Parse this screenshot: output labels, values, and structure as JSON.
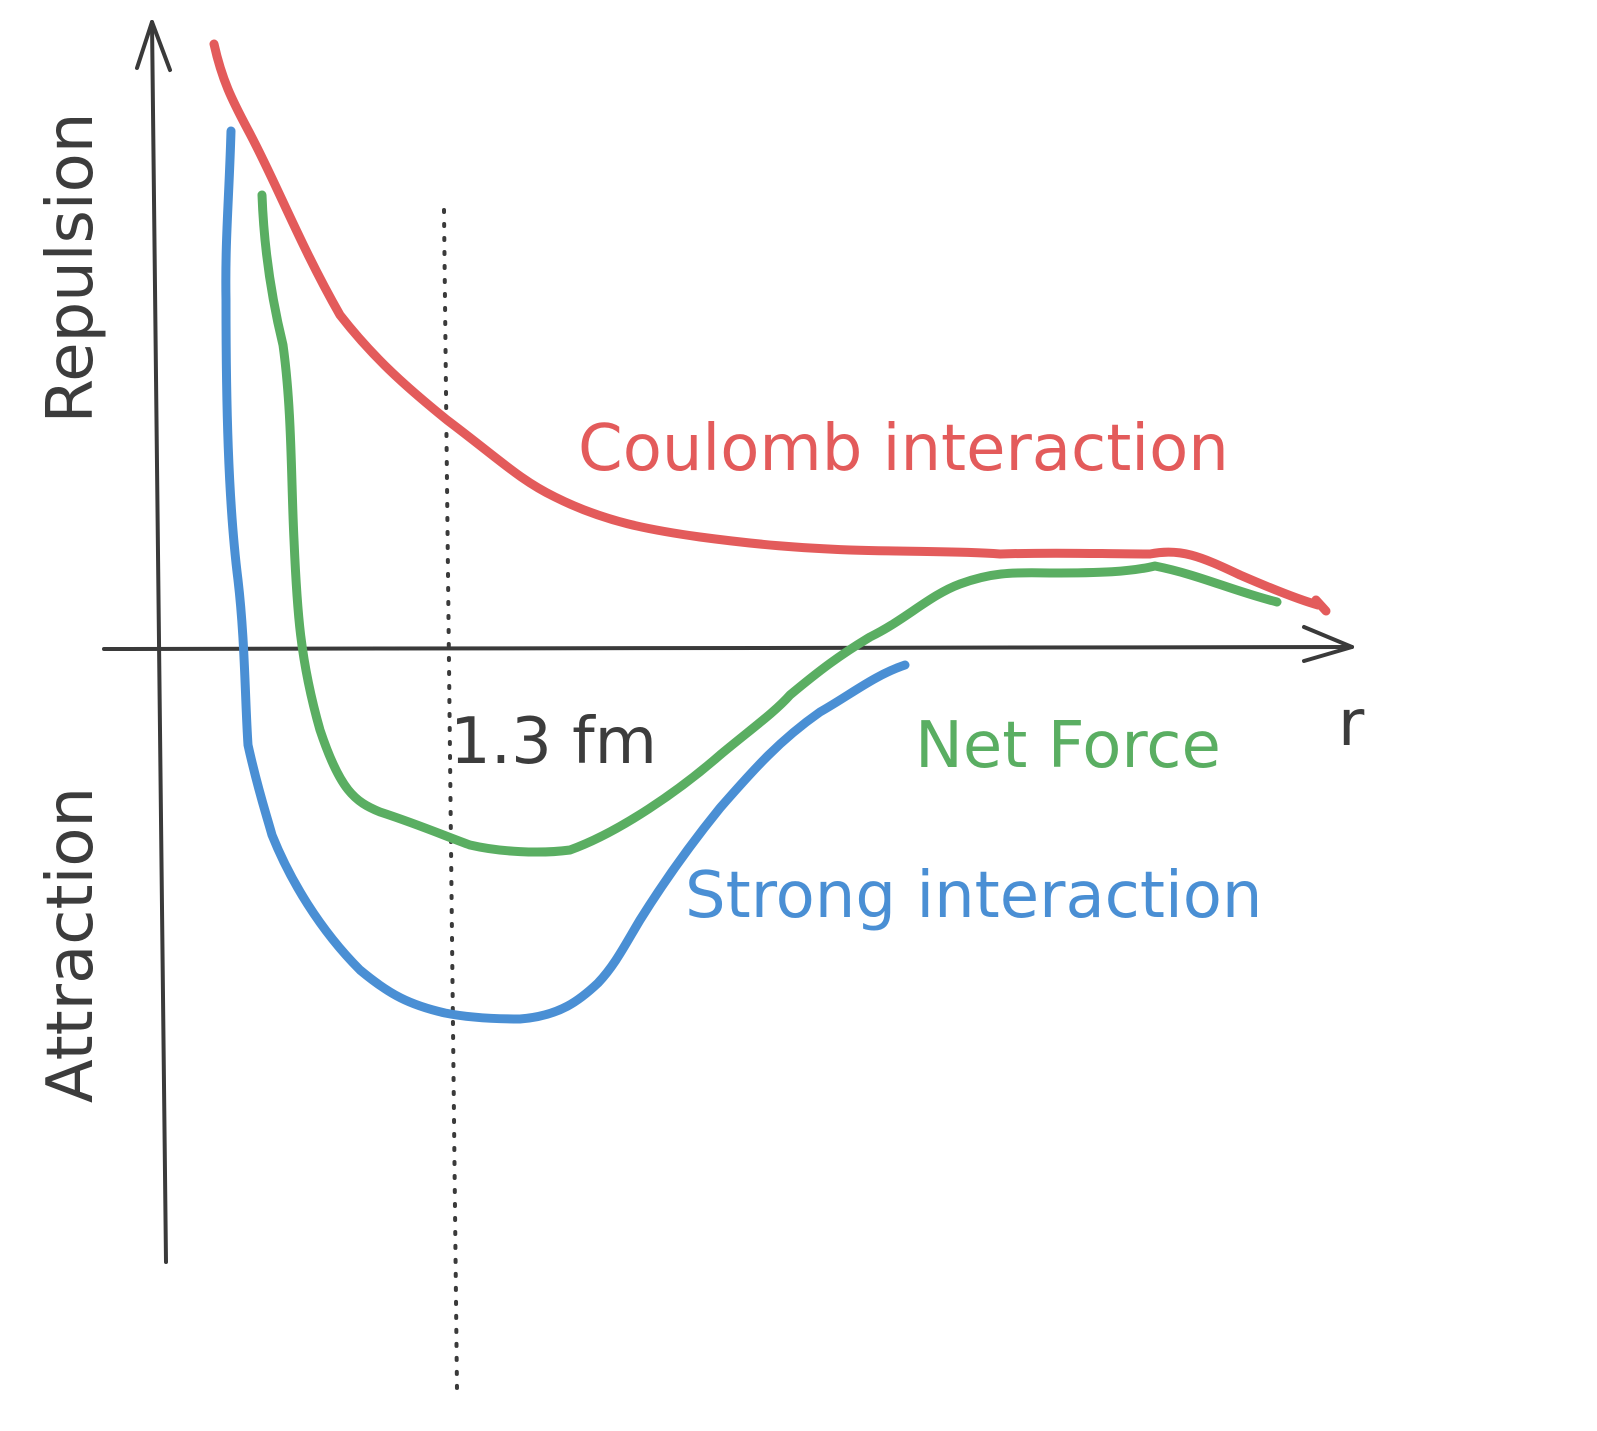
{
  "labels": {
    "repulsion": "Repulsion",
    "attraction": "Attraction",
    "r_axis": "r",
    "distance_marker": "1.3 fm",
    "coulomb": "Coulomb interaction",
    "net_force": "Net Force",
    "strong": "Strong interaction"
  },
  "colors": {
    "coulomb": "#e35b5b",
    "net_force": "#5aae62",
    "strong": "#4a8fd4",
    "axis": "#3a3a3a"
  }
}
